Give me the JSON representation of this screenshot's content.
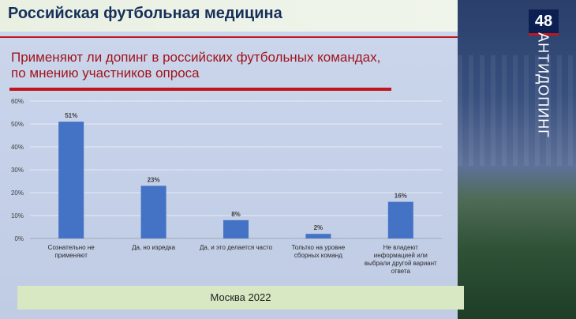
{
  "header": {
    "title": "Российская футбольная медицина"
  },
  "slide_number": "48",
  "side_label": "АНТИДОПИНГ",
  "subtitle": "Применяют ли допинг в российских футбольных командах, по мнению участников опроса",
  "footer": {
    "text": "Москва 2022"
  },
  "colors": {
    "bar": "#4472c4",
    "accent_red": "#c0161e",
    "title_blue": "#16305a"
  },
  "chart_data": {
    "type": "bar",
    "categories": [
      [
        "Сознательно не",
        "применяют"
      ],
      [
        "Да, но изредка"
      ],
      [
        "Да, и это делается часто"
      ],
      [
        "Тольтко на уровне",
        "сборных команд"
      ],
      [
        "Не владеют",
        "информацией или",
        "выбрали другой вариант",
        "ответа"
      ]
    ],
    "values": [
      51,
      23,
      8,
      2,
      16
    ],
    "value_labels": [
      "51%",
      "23%",
      "8%",
      "2%",
      "16%"
    ],
    "y_ticks": [
      "0%",
      "10%",
      "20%",
      "30%",
      "40%",
      "50%",
      "60%"
    ],
    "ylim": [
      0,
      60
    ],
    "title": "",
    "xlabel": "",
    "ylabel": ""
  }
}
